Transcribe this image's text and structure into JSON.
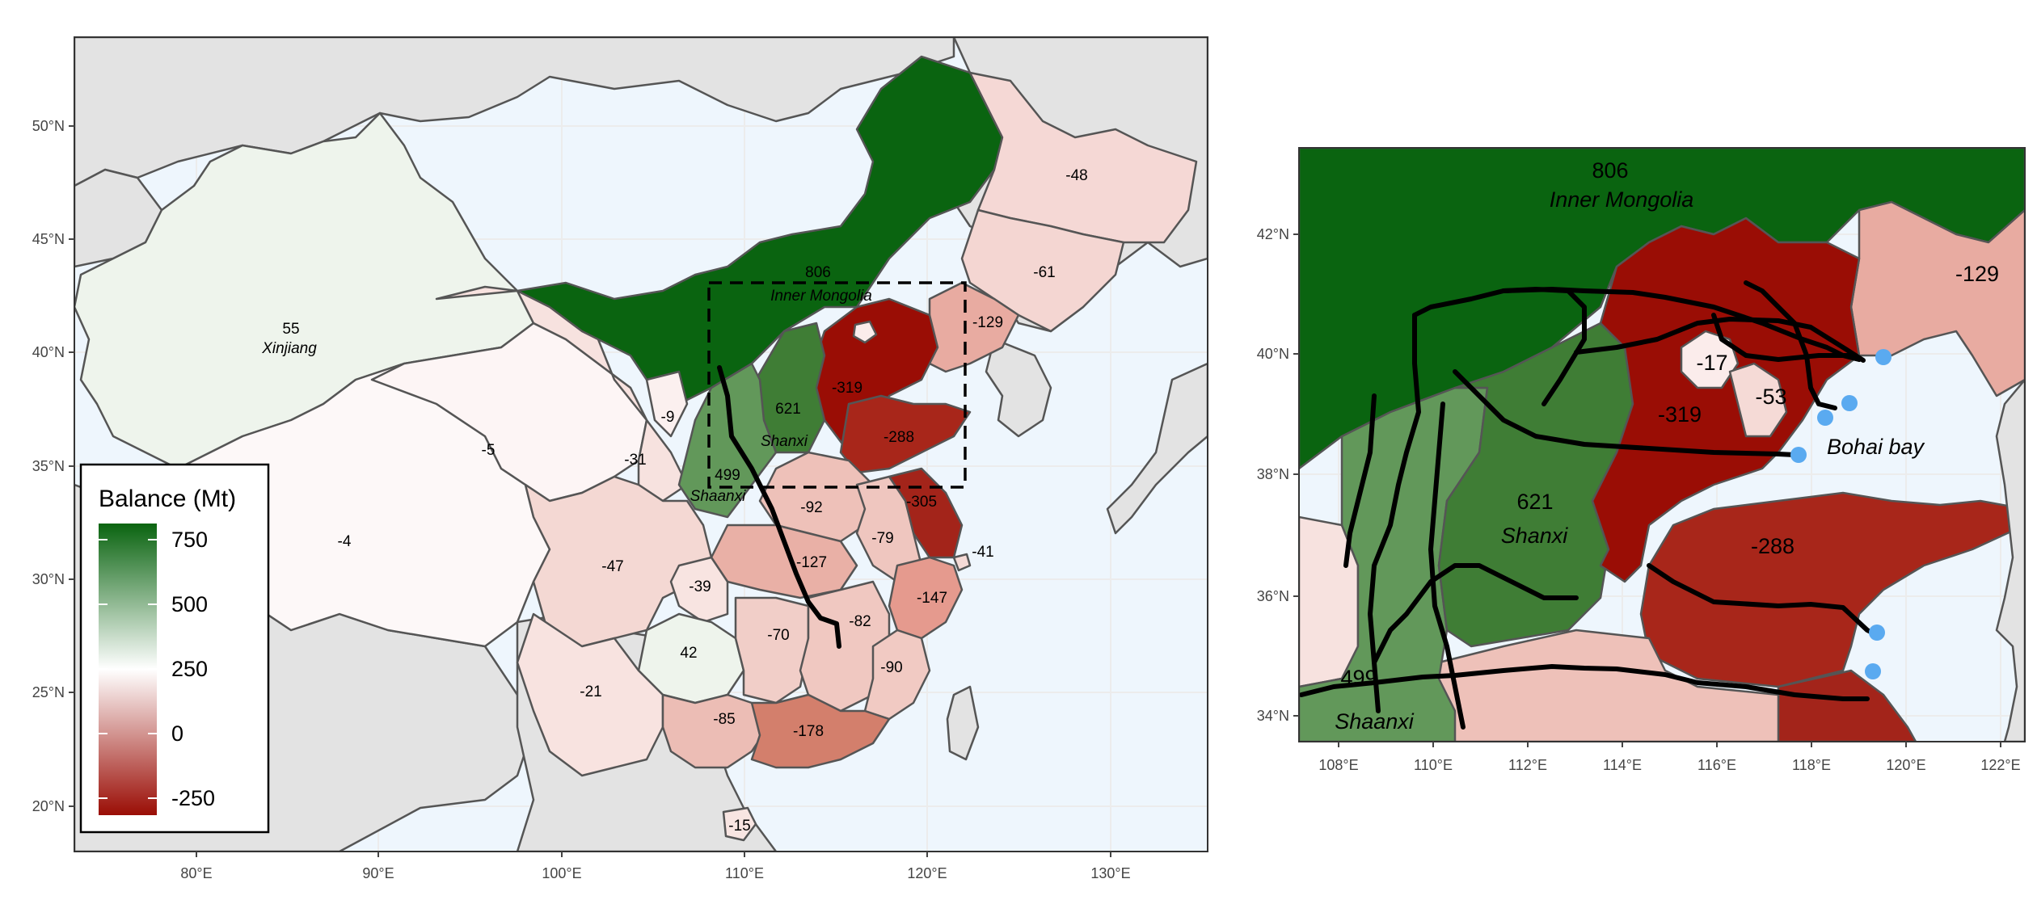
{
  "left_map": {
    "x_ticks": [
      "80°E",
      "90°E",
      "100°E",
      "110°E",
      "120°E",
      "130°E"
    ],
    "y_ticks": [
      "50°N",
      "45°N",
      "40°N",
      "35°N",
      "30°N",
      "25°N",
      "20°N"
    ],
    "labels": {
      "xinjiang_val": "55",
      "xinjiang_name": "Xinjiang",
      "inner_mongolia_val": "806",
      "inner_mongolia_name": "Inner Mongolia",
      "shanxi_val": "621",
      "shanxi_name": "Shanxi",
      "shaanxi_val": "499",
      "shaanxi_name": "Shaanxi",
      "hebei_val": "-319",
      "shandong_val": "-288",
      "liaoning_val": "-129",
      "jilin_val": "-61",
      "heilongjiang_val": "-48",
      "ningxia_val": "-9",
      "qinghai_val": "-5",
      "gansu_val": "-31",
      "tibet_val": "-4",
      "sichuan_val": "-47",
      "chongqing_val": "-39",
      "henan_val": "-92",
      "anhui_val": "-79",
      "jiangsu_val": "-305",
      "shanghai_val": "-41",
      "hubei_val": "-127",
      "hunan_val": "-70",
      "jiangxi_val": "-82",
      "zhejiang_val": "-147",
      "fujian_val": "-90",
      "guizhou_val": "42",
      "yunnan_val": "-21",
      "guangxi_val": "-85",
      "guangdong_val": "-178",
      "hainan_val": "-15"
    }
  },
  "legend": {
    "title": "Balance (Mt)",
    "ticks": [
      "750",
      "500",
      "250",
      "0",
      "-250"
    ],
    "colors": {
      "high": "#0a6410",
      "mid": "#ffffff",
      "low": "#9a0d05"
    }
  },
  "right_map": {
    "x_ticks": [
      "108°E",
      "110°E",
      "112°E",
      "114°E",
      "116°E",
      "118°E",
      "120°E",
      "122°E"
    ],
    "y_ticks": [
      "42°N",
      "40°N",
      "38°N",
      "36°N",
      "34°N"
    ],
    "labels": {
      "inner_mongolia_val": "806",
      "inner_mongolia_name": "Inner Mongolia",
      "liaoning_val": "-129",
      "beijing_val": "-17",
      "tianjin_val": "-53",
      "hebei_val": "-319",
      "bohai_name": "Bohai bay",
      "shanxi_val": "621",
      "shanxi_name": "Shanxi",
      "shandong_val": "-288",
      "shaanxi_val": "499",
      "shaanxi_name": "Shaanxi"
    }
  },
  "colors": {
    "sea": "#eef6fd",
    "land": "#e3e3e3",
    "border": "#555555",
    "port": "#5aaaf0",
    "railway": "#000000"
  }
}
